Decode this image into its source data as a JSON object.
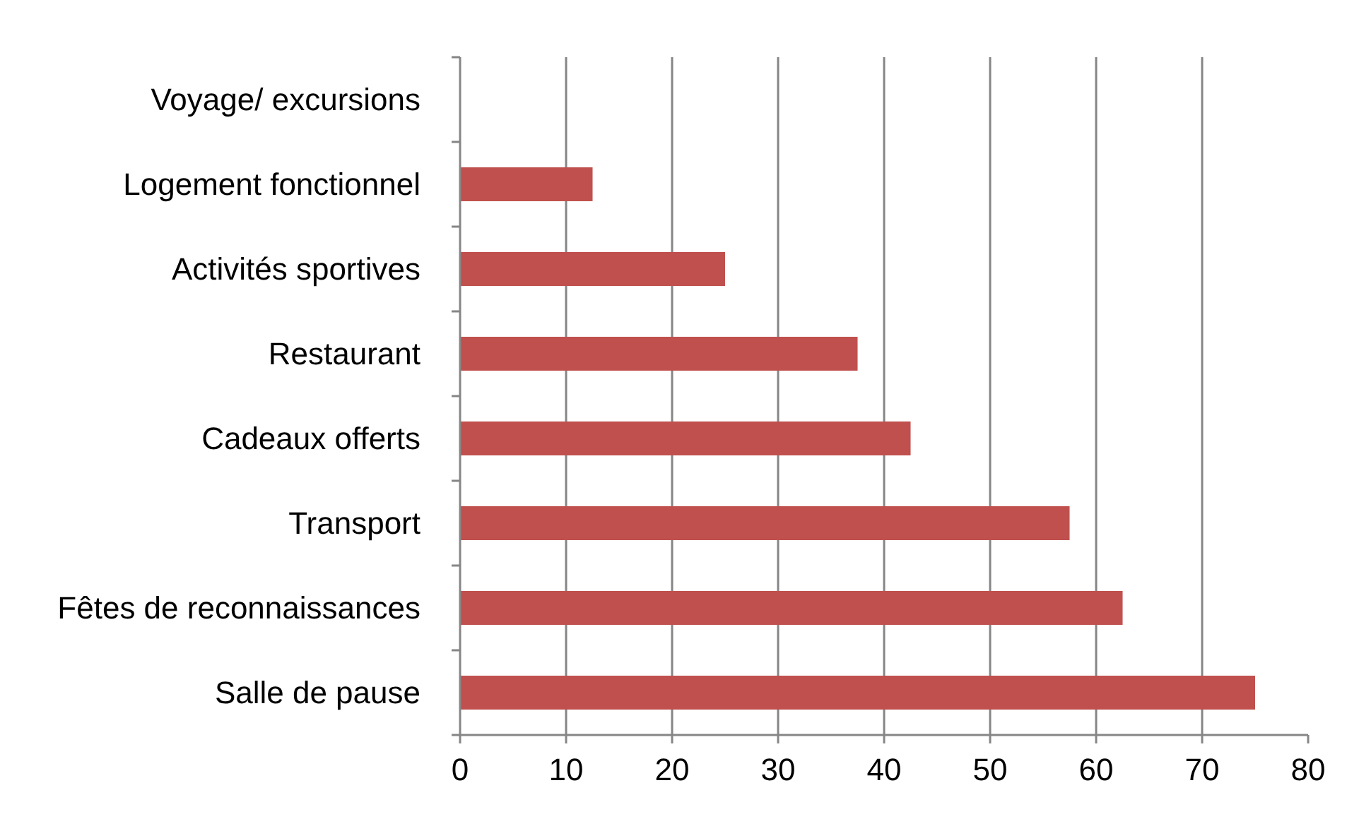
{
  "chart_data": {
    "type": "bar",
    "orientation": "horizontal",
    "categories": [
      "Voyage/ excursions",
      "Logement fonctionnel",
      "Activités sportives",
      "Restaurant",
      "Cadeaux offerts",
      "Transport",
      "Fêtes de reconnaissances",
      "Salle de pause"
    ],
    "values": [
      0,
      12.5,
      25,
      37.5,
      42.5,
      57.5,
      62.5,
      75
    ],
    "color": "#c0504d",
    "xlim": [
      0,
      80
    ],
    "xticks": [
      0,
      10,
      20,
      30,
      40,
      50,
      60,
      70,
      80
    ],
    "grid": "x"
  }
}
